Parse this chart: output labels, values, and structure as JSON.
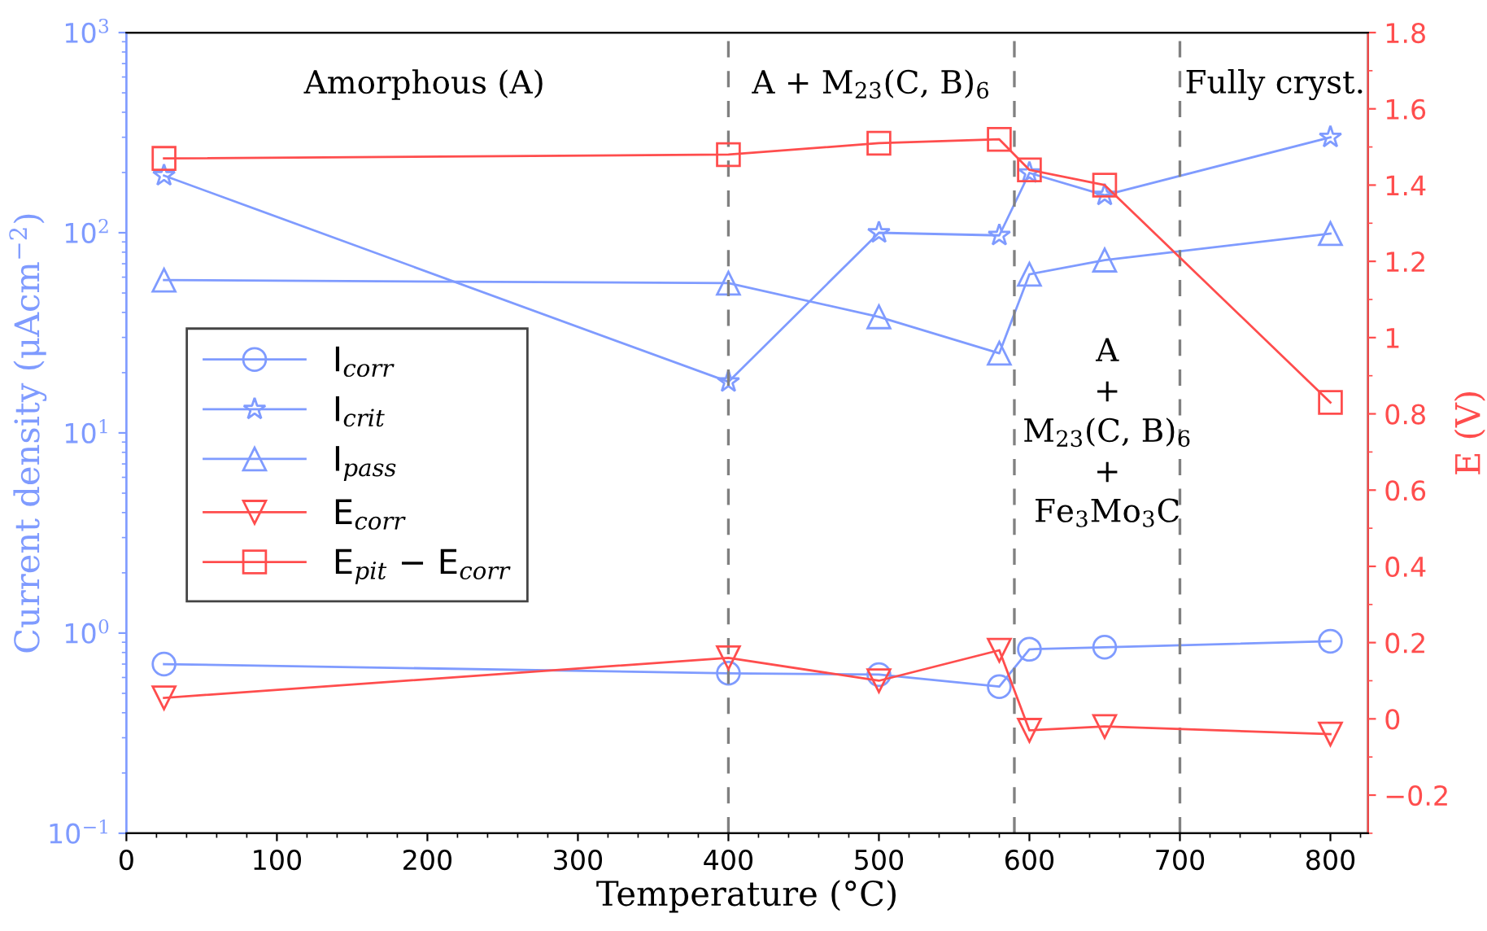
{
  "chart_data": {
    "type": "line",
    "xlabel": "Temperature (°C)",
    "ylabel": "Current density (μAcm$^{−2}$)",
    "y2label": "E (V)",
    "x": [
      25,
      400,
      500,
      580,
      600,
      650,
      800
    ],
    "series": [
      {
        "name": "I$_{corr}$",
        "color": "#7f9bff",
        "marker": "circle",
        "values": [
          0.7,
          0.63,
          0.62,
          0.54,
          0.83,
          0.85,
          0.91
        ]
      },
      {
        "name": "I$_{crit}$",
        "color": "#7f9bff",
        "marker": "star",
        "values": [
          193,
          18,
          100,
          97,
          199,
          154,
          300
        ]
      },
      {
        "name": "I$_{pass}$",
        "color": "#7f9bff",
        "marker": "triangle",
        "values": [
          58,
          56,
          38,
          25,
          62,
          73,
          99
        ]
      },
      {
        "name": "E$_{corr}$",
        "color": "#ff4d4d",
        "marker": "triangle_down",
        "axis": "y2",
        "values": [
          0.055,
          0.16,
          0.1,
          0.18,
          -0.03,
          -0.02,
          -0.04
        ]
      },
      {
        "name": "E$_{pit}$ − E$_{corr}$",
        "color": "#ff4d4d",
        "marker": "square",
        "axis": "y2",
        "values": [
          1.47,
          1.48,
          1.51,
          1.52,
          1.44,
          1.4,
          0.83
        ]
      }
    ],
    "log": "y",
    "xlim": [
      0,
      825
    ],
    "xticks": [
      0,
      100,
      200,
      300,
      400,
      500,
      600,
      700,
      800
    ],
    "ylim": [
      0.1,
      1000
    ],
    "yticks": [
      {
        "value": 0.1,
        "label": "10$^{−1}$"
      },
      {
        "value": 1,
        "label": "10$^{0}$"
      },
      {
        "value": 10,
        "label": "10$^{1}$"
      },
      {
        "value": 100,
        "label": "10$^{2}$"
      },
      {
        "value": 1000,
        "label": "10$^{3}$"
      }
    ],
    "y2lim": [
      -0.3,
      1.8
    ],
    "y2ticks": [
      {
        "value": -0.2,
        "label": "−0.2"
      },
      0,
      0.2,
      0.4,
      0.6,
      0.8,
      1,
      1.2,
      1.4,
      1.6,
      1.8
    ],
    "ref_lines": [
      {
        "axis": "x",
        "value": 400,
        "color": "#808080",
        "line_style": "dashed"
      },
      {
        "axis": "x",
        "value": 590,
        "color": "#808080",
        "line_style": "dashed"
      },
      {
        "axis": "x",
        "value": 700,
        "color": "#808080",
        "line_style": "dashed"
      }
    ],
    "annotations": [
      "Amorphous (A)",
      "A + M$_{23}$(C, B)$_{6}$",
      "Fully cryst.",
      "A\n+\nM$_{23}$(C, B)$_{6}$\n+\nFe$_{3}$Mo$_{3}$C"
    ],
    "legend": "center left",
    "grid": false,
    "line_style": "solid"
  }
}
